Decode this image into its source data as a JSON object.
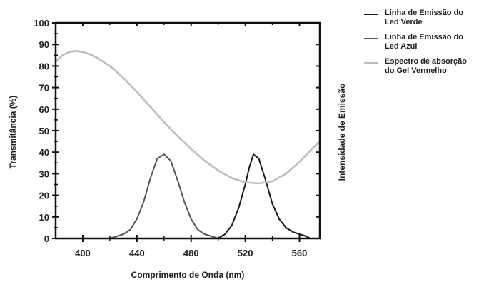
{
  "chart_data": {
    "type": "line",
    "xlabel": "Comprimento de Onda (nm)",
    "ylabel": "Transmitância (%)",
    "y2label": "Intensidade de Emissão",
    "xlim": [
      380,
      575
    ],
    "ylim": [
      0,
      100
    ],
    "x_ticks": [
      400,
      440,
      480,
      520,
      560
    ],
    "y_ticks": [
      0,
      10,
      20,
      30,
      40,
      50,
      60,
      70,
      80,
      90,
      100
    ],
    "grid": false,
    "legend_position": "right",
    "series": [
      {
        "name": "Linha de Emissão do Led Verde",
        "color": "#1a1a1a",
        "x": [
          500,
          505,
          510,
          515,
          520,
          523,
          526,
          530,
          535,
          540,
          545,
          550,
          555,
          560,
          565,
          568
        ],
        "y": [
          0,
          2,
          6,
          14,
          25,
          33,
          39,
          37,
          27,
          16,
          9,
          5,
          3,
          2,
          1,
          0
        ]
      },
      {
        "name": "Linha de Emissão do Led Azul",
        "color": "#555555",
        "x": [
          420,
          425,
          430,
          435,
          440,
          445,
          450,
          455,
          460,
          465,
          470,
          475,
          480,
          485,
          490,
          495,
          500
        ],
        "y": [
          0,
          1,
          2,
          4,
          9,
          17,
          28,
          37,
          39,
          36,
          27,
          17,
          9,
          4,
          2,
          1,
          0
        ]
      },
      {
        "name": "Espectro de absorção do Gel Vermelho",
        "color": "#bdbdbd",
        "x": [
          380,
          385,
          390,
          395,
          400,
          405,
          410,
          420,
          430,
          440,
          450,
          460,
          470,
          480,
          490,
          500,
          510,
          520,
          530,
          540,
          550,
          560,
          570,
          575
        ],
        "y": [
          82,
          85,
          86.5,
          87,
          86.5,
          85.5,
          84,
          80,
          74.5,
          68,
          61,
          54,
          47.5,
          41.5,
          36,
          31.5,
          28,
          26,
          25.5,
          26.5,
          30,
          35.5,
          42,
          45
        ]
      }
    ]
  }
}
